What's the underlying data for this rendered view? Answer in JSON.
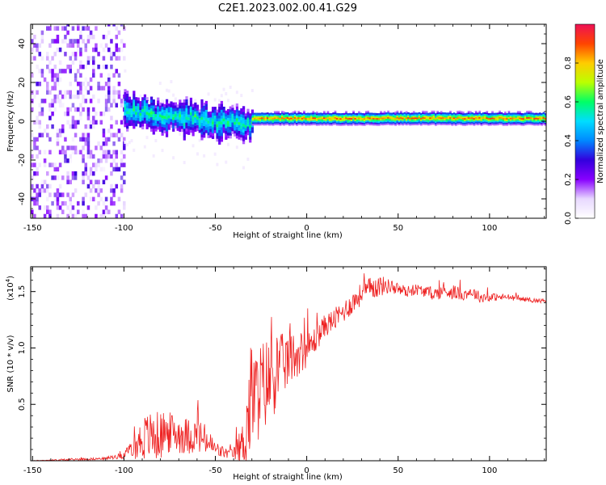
{
  "figure_title": "C2E1.2023.002.00.41.G29",
  "chart_data": [
    {
      "type": "heatmap",
      "title": "C2E1.2023.002.00.41.G29",
      "xlabel": "Height of straight line (km)",
      "ylabel": "Frequency (Hz)",
      "xlim": [
        -151,
        131
      ],
      "ylim": [
        -50,
        50
      ],
      "xticks": [
        -150,
        -100,
        -50,
        0,
        50,
        100
      ],
      "yticks": [
        -40,
        -20,
        0,
        20,
        40
      ],
      "colorbar": {
        "label": "Normalized spectral amplitude",
        "range": [
          0,
          1
        ],
        "ticks": [
          0.0,
          0.2,
          0.4,
          0.6,
          0.8
        ],
        "colormap": [
          "#ffffff",
          "#e8d8ff",
          "#8800ff",
          "#3300dd",
          "#0088ff",
          "#00ddff",
          "#00ff66",
          "#bbff00",
          "#ffcc00",
          "#ff4400",
          "#ee1155"
        ]
      },
      "description_regions": [
        {
          "x_range": [
            -151,
            -100
          ],
          "pattern": "scattered noise",
          "amplitude": 0.12
        },
        {
          "x_range": [
            -100,
            -30
          ],
          "pattern": "broad band drifting from +5 to -3 Hz",
          "amplitude": 0.35
        },
        {
          "x_range": [
            -30,
            131
          ],
          "pattern": "narrow line near +1 Hz",
          "amplitude": 0.85
        }
      ]
    },
    {
      "type": "line",
      "xlabel": "Height of straight line (km)",
      "ylabel": "SNR (10 * v/v)",
      "y_scale_label": "(x10",
      "y_scale_exponent": "4",
      "xlim": [
        -151,
        131
      ],
      "ylim": [
        0,
        1.72
      ],
      "xticks": [
        -150,
        -100,
        -50,
        0,
        50,
        100
      ],
      "yticks": [
        0.5,
        1.0,
        1.5
      ],
      "ytick_labels": [
        "0.5",
        "1.0",
        "1.5"
      ],
      "color": "#ee2222",
      "series": [
        {
          "name": "SNR",
          "x": [
            -151,
            -130,
            -110,
            -100,
            -95,
            -90,
            -85,
            -80,
            -75,
            -70,
            -65,
            -60,
            -55,
            -50,
            -45,
            -40,
            -35,
            -32,
            -30,
            -28,
            -25,
            -20,
            -15,
            -10,
            -5,
            0,
            5,
            10,
            15,
            20,
            25,
            30,
            35,
            40,
            45,
            50,
            55,
            60,
            65,
            70,
            75,
            80,
            85,
            90,
            95,
            100,
            105,
            110,
            115,
            120,
            125,
            131
          ],
          "values": [
            0.0,
            0.01,
            0.02,
            0.05,
            0.1,
            0.2,
            0.22,
            0.22,
            0.25,
            0.24,
            0.22,
            0.22,
            0.18,
            0.1,
            0.07,
            0.06,
            0.15,
            0.4,
            0.6,
            0.55,
            0.65,
            0.72,
            0.82,
            0.9,
            0.95,
            0.98,
            1.08,
            1.2,
            1.25,
            1.32,
            1.4,
            1.48,
            1.53,
            1.55,
            1.55,
            1.52,
            1.5,
            1.52,
            1.5,
            1.48,
            1.5,
            1.5,
            1.47,
            1.5,
            1.45,
            1.45,
            1.45,
            1.45,
            1.44,
            1.43,
            1.42,
            1.42
          ],
          "noise": [
            0.0,
            0.01,
            0.01,
            0.03,
            0.08,
            0.2,
            0.22,
            0.22,
            0.18,
            0.18,
            0.16,
            0.16,
            0.14,
            0.08,
            0.05,
            0.05,
            0.2,
            0.5,
            0.5,
            0.45,
            0.42,
            0.4,
            0.3,
            0.25,
            0.2,
            0.15,
            0.12,
            0.1,
            0.1,
            0.1,
            0.1,
            0.1,
            0.1,
            0.1,
            0.06,
            0.06,
            0.05,
            0.05,
            0.05,
            0.06,
            0.06,
            0.07,
            0.05,
            0.05,
            0.05,
            0.04,
            0.03,
            0.03,
            0.02,
            0.02,
            0.02,
            0.02
          ]
        }
      ]
    }
  ]
}
